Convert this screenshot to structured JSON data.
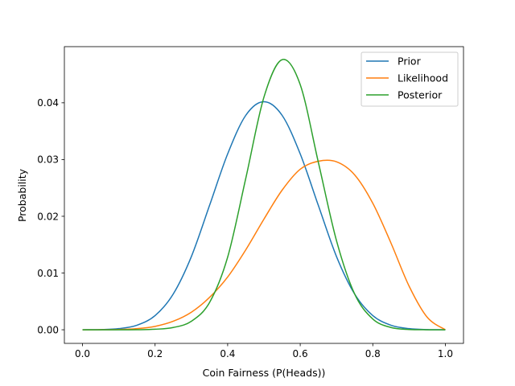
{
  "chart_data": {
    "type": "line",
    "title": "",
    "xlabel": "Coin Fairness (P(Heads))",
    "ylabel": "Probability",
    "xlim": [
      -0.05,
      1.05
    ],
    "ylim": [
      -0.0024,
      0.0499
    ],
    "xticks": [
      0.0,
      0.2,
      0.4,
      0.6,
      0.8,
      1.0
    ],
    "xtick_labels": [
      "0.0",
      "0.2",
      "0.4",
      "0.6",
      "0.8",
      "1.0"
    ],
    "yticks": [
      0.0,
      0.01,
      0.02,
      0.03,
      0.04
    ],
    "ytick_labels": [
      "0.00",
      "0.01",
      "0.02",
      "0.03",
      "0.04"
    ],
    "grid": false,
    "legend": "top-right",
    "x": [
      0.0,
      0.05,
      0.1,
      0.15,
      0.2,
      0.25,
      0.3,
      0.35,
      0.4,
      0.45,
      0.5,
      0.55,
      0.6,
      0.65,
      0.7,
      0.75,
      0.8,
      0.85,
      0.9,
      0.95,
      1.0
    ],
    "series": [
      {
        "name": "Prior",
        "color": "#1f77b4",
        "values": [
          0.0,
          3e-05,
          0.0002,
          0.0008,
          0.0025,
          0.0063,
          0.0129,
          0.0219,
          0.031,
          0.0378,
          0.0402,
          0.0378,
          0.031,
          0.0219,
          0.0129,
          0.0063,
          0.0025,
          0.0008,
          0.0002,
          3e-05,
          0.0
        ]
      },
      {
        "name": "Likelihood",
        "color": "#ff7f0e",
        "values": [
          0.0,
          4e-06,
          4e-05,
          0.0002,
          0.0006,
          0.0015,
          0.0031,
          0.0057,
          0.0093,
          0.0141,
          0.0195,
          0.0246,
          0.0283,
          0.0297,
          0.0296,
          0.0273,
          0.0223,
          0.0153,
          0.0077,
          0.0022,
          0.0
        ]
      },
      {
        "name": "Posterior",
        "color": "#2ca02c",
        "values": [
          0.0,
          0.0,
          0.0,
          1e-05,
          9e-05,
          0.0004,
          0.0015,
          0.0048,
          0.0128,
          0.0267,
          0.041,
          0.0476,
          0.0432,
          0.0295,
          0.0157,
          0.0063,
          0.0019,
          0.0004,
          5e-05,
          0.0,
          0.0
        ]
      }
    ]
  }
}
